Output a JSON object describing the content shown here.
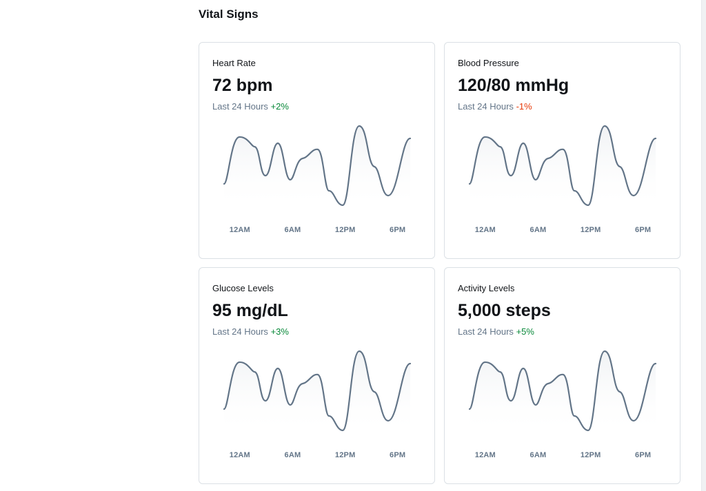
{
  "section": {
    "title": "Vital Signs"
  },
  "colors": {
    "line": "#637588",
    "fill_top": "#f0f2f4",
    "positive": "#078838",
    "negative": "#e73908"
  },
  "cards": [
    {
      "label": "Heart Rate",
      "value": "72 bpm",
      "period": "Last 24 Hours",
      "change": "+2%",
      "trend": "positive",
      "x_labels": [
        "12AM",
        "6AM",
        "12PM",
        "6PM"
      ]
    },
    {
      "label": "Blood Pressure",
      "value": "120/80 mmHg",
      "period": "Last 24 Hours",
      "change": "-1%",
      "trend": "negative",
      "x_labels": [
        "12AM",
        "6AM",
        "12PM",
        "6PM"
      ]
    },
    {
      "label": "Glucose Levels",
      "value": "95 mg/dL",
      "period": "Last 24 Hours",
      "change": "+3%",
      "trend": "positive",
      "x_labels": [
        "12AM",
        "6AM",
        "12PM",
        "6PM"
      ]
    },
    {
      "label": "Activity Levels",
      "value": "5,000 steps",
      "period": "Last 24 Hours",
      "change": "+5%",
      "trend": "positive",
      "x_labels": [
        "12AM",
        "6AM",
        "12PM",
        "6PM"
      ]
    }
  ]
}
